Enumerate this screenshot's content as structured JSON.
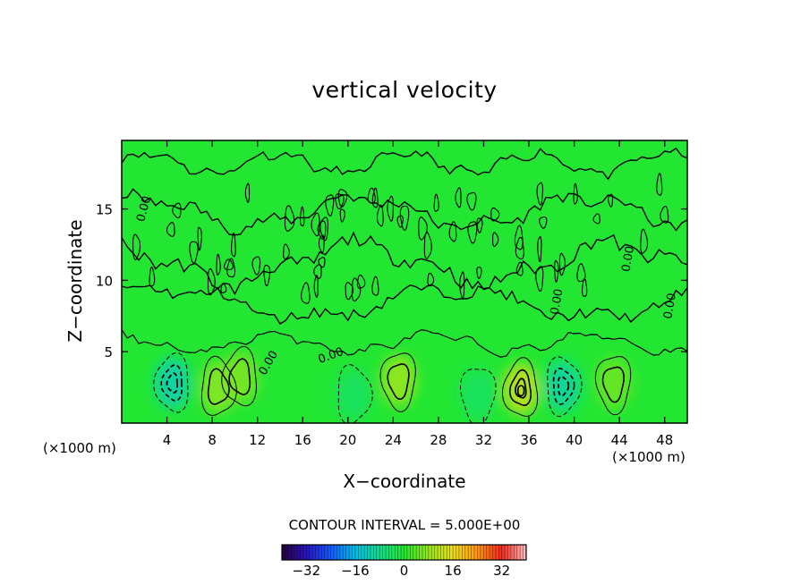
{
  "chart_data": {
    "type": "heatmap",
    "title": "vertical velocity",
    "xlabel": "X−coordinate",
    "ylabel": "Z−coordinate",
    "x_unit_label": "(×1000 m)",
    "xlim": [
      0,
      50
    ],
    "ylim": [
      0,
      19.8
    ],
    "x_ticks": [
      4,
      8,
      12,
      16,
      20,
      24,
      28,
      32,
      36,
      40,
      44,
      48
    ],
    "y_ticks": [
      5,
      10,
      15
    ],
    "contour_interval_label": "CONTOUR INTERVAL =  5.000E+00",
    "contour_labels": [
      "0.00",
      "0.00",
      "0.00",
      "0.00",
      "0.00",
      "0.00",
      "0"
    ],
    "colorbar": {
      "min": -40,
      "max": 40,
      "ticks": [
        "−32",
        "−16",
        "0",
        "16",
        "32"
      ],
      "tick_values": [
        -32,
        -16,
        0,
        16,
        32
      ]
    },
    "features": [
      {
        "x": 4.5,
        "z": 2.8,
        "w": -11
      },
      {
        "x": 8.5,
        "z": 2.5,
        "w": 7
      },
      {
        "x": 10.5,
        "z": 3.2,
        "w": 6
      },
      {
        "x": 20.5,
        "z": 2.0,
        "w": -4
      },
      {
        "x": 24.5,
        "z": 3.0,
        "w": 8
      },
      {
        "x": 31.5,
        "z": 2.0,
        "w": -4
      },
      {
        "x": 35.3,
        "z": 2.4,
        "w": 12
      },
      {
        "x": 39.0,
        "z": 2.6,
        "w": -10
      },
      {
        "x": 43.5,
        "z": 2.8,
        "w": 5
      }
    ],
    "colors": {
      "field": "#22e632",
      "contour": "#000000"
    }
  }
}
